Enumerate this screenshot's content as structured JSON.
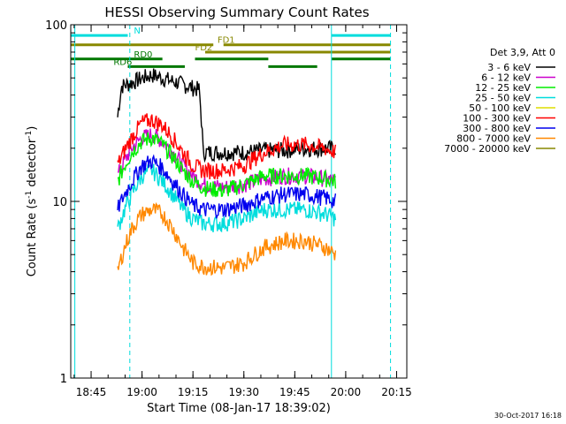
{
  "chart_data": {
    "type": "line",
    "title": "HESSI Observing Summary Count Rates",
    "xlabel": "Start Time (08-Jan-17 18:39:02)",
    "ylabel_main": "Count Rate (s",
    "ylabel_sup": "-1",
    "ylabel_mid": " detector",
    "ylabel_end": ")",
    "footer_timestamp": "30-Oct-2017 16:18",
    "x_range_minutes": [
      18.65,
      20.3
    ],
    "x_range_labels": [
      "18:39",
      "20:18"
    ],
    "ylim": [
      1,
      100
    ],
    "log_y": true,
    "x_ticks": [
      {
        "label": "18:45",
        "t": 18.75
      },
      {
        "label": "19:00",
        "t": 19.0
      },
      {
        "label": "19:15",
        "t": 19.25
      },
      {
        "label": "19:30",
        "t": 19.5
      },
      {
        "label": "19:45",
        "t": 19.75
      },
      {
        "label": "20:00",
        "t": 20.0
      },
      {
        "label": "20:15",
        "t": 20.25
      }
    ],
    "y_ticks": [
      {
        "label": "1",
        "v": 1
      },
      {
        "label": "10",
        "v": 10
      },
      {
        "label": "100",
        "v": 100
      }
    ],
    "legend_header": "Det 3,9, Att 0",
    "legend_position": "right",
    "series": [
      {
        "name": "3 - 6 keV",
        "color": "#000000",
        "points": [
          [
            18.88,
            30
          ],
          [
            18.9,
            45
          ],
          [
            18.95,
            47
          ],
          [
            19.0,
            50
          ],
          [
            19.05,
            52
          ],
          [
            19.1,
            50
          ],
          [
            19.15,
            48
          ],
          [
            19.2,
            46
          ],
          [
            19.25,
            44
          ],
          [
            19.28,
            43
          ],
          [
            19.3,
            19
          ],
          [
            19.4,
            19
          ],
          [
            19.5,
            19
          ],
          [
            19.6,
            19.5
          ],
          [
            19.7,
            19.5
          ],
          [
            19.8,
            20
          ],
          [
            19.9,
            20
          ],
          [
            19.95,
            20
          ]
        ]
      },
      {
        "name": "6 - 12 keV",
        "color": "#cc00cc",
        "points": [
          [
            18.88,
            14
          ],
          [
            18.95,
            20
          ],
          [
            19.0,
            23
          ],
          [
            19.05,
            24
          ],
          [
            19.1,
            22
          ],
          [
            19.15,
            19
          ],
          [
            19.2,
            16
          ],
          [
            19.25,
            14
          ],
          [
            19.3,
            12.5
          ],
          [
            19.4,
            12
          ],
          [
            19.5,
            12.5
          ],
          [
            19.6,
            13.5
          ],
          [
            19.7,
            14
          ],
          [
            19.8,
            14
          ],
          [
            19.9,
            13.5
          ],
          [
            19.95,
            13
          ]
        ]
      },
      {
        "name": "12 - 25 keV",
        "color": "#00ee00",
        "points": [
          [
            18.88,
            13
          ],
          [
            18.95,
            19
          ],
          [
            19.0,
            22
          ],
          [
            19.05,
            23
          ],
          [
            19.1,
            21
          ],
          [
            19.15,
            18
          ],
          [
            19.2,
            15
          ],
          [
            19.25,
            13
          ],
          [
            19.3,
            12
          ],
          [
            19.4,
            11.5
          ],
          [
            19.5,
            12.5
          ],
          [
            19.6,
            14
          ],
          [
            19.7,
            14
          ],
          [
            19.8,
            14
          ],
          [
            19.9,
            13.5
          ],
          [
            19.95,
            13
          ]
        ]
      },
      {
        "name": "25 - 50 keV",
        "color": "#00dddd",
        "points": [
          [
            18.88,
            7
          ],
          [
            18.95,
            11
          ],
          [
            19.0,
            14
          ],
          [
            19.05,
            15
          ],
          [
            19.1,
            13
          ],
          [
            19.15,
            11
          ],
          [
            19.2,
            9
          ],
          [
            19.25,
            8
          ],
          [
            19.3,
            7.5
          ],
          [
            19.4,
            7.5
          ],
          [
            19.5,
            8
          ],
          [
            19.6,
            9
          ],
          [
            19.7,
            9
          ],
          [
            19.8,
            9
          ],
          [
            19.9,
            8.5
          ],
          [
            19.95,
            8
          ]
        ]
      },
      {
        "name": "50 - 100 keV",
        "color": "#dddd00",
        "points": []
      },
      {
        "name": "100 - 300 keV",
        "color": "#ff0000",
        "points": [
          [
            18.88,
            16
          ],
          [
            18.95,
            23
          ],
          [
            19.0,
            28
          ],
          [
            19.05,
            29
          ],
          [
            19.1,
            27
          ],
          [
            19.15,
            23
          ],
          [
            19.2,
            19
          ],
          [
            19.25,
            16
          ],
          [
            19.3,
            15
          ],
          [
            19.4,
            15
          ],
          [
            19.5,
            16
          ],
          [
            19.6,
            19
          ],
          [
            19.7,
            21
          ],
          [
            19.8,
            21
          ],
          [
            19.9,
            20
          ],
          [
            19.95,
            19
          ]
        ]
      },
      {
        "name": "300 - 800 keV",
        "color": "#0000ee",
        "points": [
          [
            18.88,
            9
          ],
          [
            18.95,
            13
          ],
          [
            19.0,
            16
          ],
          [
            19.05,
            17
          ],
          [
            19.1,
            15.5
          ],
          [
            19.15,
            13
          ],
          [
            19.2,
            11
          ],
          [
            19.25,
            9.5
          ],
          [
            19.3,
            9
          ],
          [
            19.4,
            9
          ],
          [
            19.5,
            9.5
          ],
          [
            19.6,
            10.5
          ],
          [
            19.7,
            11
          ],
          [
            19.8,
            11
          ],
          [
            19.9,
            10.5
          ],
          [
            19.95,
            10
          ]
        ]
      },
      {
        "name": "800 - 7000 keV",
        "color": "#ff8800",
        "points": [
          [
            18.88,
            4
          ],
          [
            18.95,
            7
          ],
          [
            19.0,
            8.5
          ],
          [
            19.05,
            9
          ],
          [
            19.1,
            8.5
          ],
          [
            19.15,
            7
          ],
          [
            19.2,
            5.5
          ],
          [
            19.25,
            4.5
          ],
          [
            19.3,
            4.3
          ],
          [
            19.4,
            4.2
          ],
          [
            19.5,
            4.5
          ],
          [
            19.6,
            5.5
          ],
          [
            19.7,
            6
          ],
          [
            19.8,
            6
          ],
          [
            19.9,
            5.5
          ],
          [
            19.95,
            5
          ]
        ]
      },
      {
        "name": "7000 - 20000 keV",
        "color": "#888800",
        "points": []
      }
    ],
    "vertical_lines": [
      {
        "t": 18.67,
        "style": "solid",
        "color": "#00dddd"
      },
      {
        "t": 18.94,
        "style": "dashed",
        "color": "#00dddd"
      },
      {
        "t": 19.93,
        "style": "solid",
        "color": "#00dddd"
      },
      {
        "t": 20.22,
        "style": "dashed",
        "color": "#00dddd"
      }
    ],
    "flag_bars": [
      {
        "label": "N",
        "label_t": 18.96,
        "level": 87,
        "color": "#00dddd",
        "segments": [
          [
            18.65,
            18.93
          ],
          [
            19.93,
            20.22
          ]
        ]
      },
      {
        "label": "FD1",
        "label_t": 19.37,
        "level": 77,
        "color": "#888800",
        "segments": [
          [
            18.65,
            19.35
          ],
          [
            19.4,
            20.22
          ]
        ]
      },
      {
        "label": "FD2",
        "label_t": 19.26,
        "level": 70,
        "color": "#888800",
        "segments": [
          [
            19.31,
            20.22
          ]
        ]
      },
      {
        "label": "RD0",
        "label_t": 18.96,
        "level": 64,
        "color": "#007700",
        "segments": [
          [
            18.65,
            19.1
          ],
          [
            19.26,
            19.62
          ],
          [
            19.93,
            20.22
          ]
        ]
      },
      {
        "label": "RD6",
        "label_t": 18.86,
        "level": 58,
        "color": "#007700",
        "segments": [
          [
            18.93,
            19.21
          ],
          [
            19.62,
            19.86
          ]
        ]
      }
    ]
  }
}
